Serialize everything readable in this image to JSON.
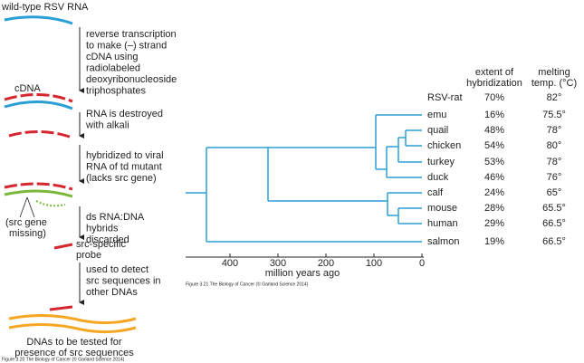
{
  "flow": {
    "title": "wild-type RSV RNA",
    "steps": [
      [
        "reverse transcription",
        "to make (–) strand",
        "cDNA using",
        "radiolabeled",
        "deoxyribonucleoside",
        "triphosphates"
      ],
      [
        "RNA is destroyed",
        "with alkali"
      ],
      [
        "hybridized to viral",
        "RNA of td mutant",
        "(lacks src gene)"
      ],
      [
        "ds RNA:DNA",
        "hybrids",
        "discarded"
      ],
      [
        "used to detect",
        "src sequences in",
        "other DNAs"
      ]
    ],
    "cdna_label": "cDNA",
    "missing_label": [
      "(src gene",
      "missing)"
    ],
    "probe_label": [
      "src-specific",
      "probe"
    ],
    "bottom_text": [
      "DNAs to be tested for",
      "presence of src sequences"
    ],
    "caption": "Figure 3.20 The Biology of Cancer (© Garland Science 2014)"
  },
  "tree": {
    "axis_label": "million years ago",
    "ticks": [
      400,
      300,
      200,
      100,
      0
    ],
    "caption": "Figure 3.21 The Biology of Cancer (© Garland Science 2014)",
    "headers": [
      "extent of",
      "hybridization",
      "melting",
      "temp. (°C)"
    ],
    "rows": [
      [
        "RSV-rat",
        "70%",
        "82°"
      ],
      [
        "emu",
        "16%",
        "75.5°"
      ],
      [
        "quail",
        "48%",
        "78°"
      ],
      [
        "chicken",
        "54%",
        "80°"
      ],
      [
        "turkey",
        "53%",
        "78°"
      ],
      [
        "duck",
        "46%",
        "76°"
      ],
      [
        "calf",
        "24%",
        "65°"
      ],
      [
        "mouse",
        "28%",
        "65.5°"
      ],
      [
        "human",
        "29%",
        "66.5°"
      ],
      [
        "salmon",
        "19%",
        "66.5°"
      ]
    ]
  }
}
